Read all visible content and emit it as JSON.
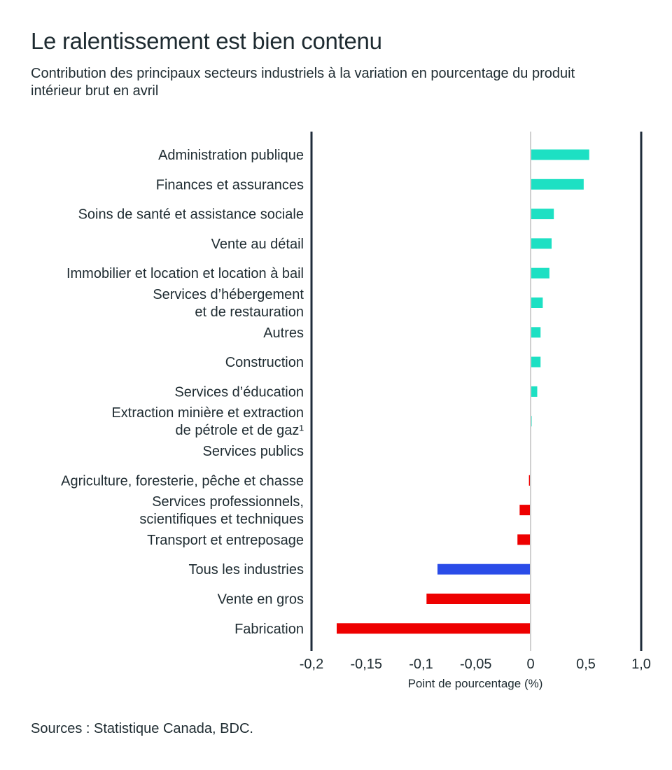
{
  "header": {
    "title": "Le ralentissement est bien contenu",
    "subtitle": "Contribution des principaux secteurs industriels à la variation en pourcentage du produit intérieur brut en avril"
  },
  "footer": {
    "source": "Sources : Statistique Canada, BDC."
  },
  "colors": {
    "positive": "#1de0c3",
    "negative": "#ee0000",
    "total": "#2a4ce8",
    "axis": "#1e2b3a",
    "zero_line": "#d0d0d0",
    "text": "#1e2b31"
  },
  "chart_data": {
    "type": "bar",
    "orientation": "horizontal",
    "title": "Le ralentissement est bien contenu",
    "subtitle": "Contribution des principaux secteurs industriels à la variation en pourcentage du produit intérieur brut en avril",
    "xlabel": "Point de pourcentage (%)",
    "ylabel": "",
    "xlim": [
      -0.2,
      1.0
    ],
    "scale_note": "broken scale: negative side -0.2 to 0 expanded, positive side 0 to 1.0 compressed",
    "xticks": [
      {
        "value": -0.2,
        "label": "-0,2"
      },
      {
        "value": -0.15,
        "label": "-0,15"
      },
      {
        "value": -0.1,
        "label": "-0,1"
      },
      {
        "value": -0.05,
        "label": "-0,05"
      },
      {
        "value": 0,
        "label": "0"
      },
      {
        "value": 0.5,
        "label": "0,5"
      },
      {
        "value": 1.0,
        "label": "1,0"
      }
    ],
    "grid": false,
    "legend": "none",
    "categories": [
      {
        "label": [
          "Administration publique"
        ],
        "value": 0.53,
        "kind": "positive"
      },
      {
        "label": [
          "Finances et assurances"
        ],
        "value": 0.48,
        "kind": "positive"
      },
      {
        "label": [
          "Soins de santé et assistance sociale"
        ],
        "value": 0.21,
        "kind": "positive"
      },
      {
        "label": [
          "Vente au détail"
        ],
        "value": 0.19,
        "kind": "positive"
      },
      {
        "label": [
          "Immobilier et location et location à bail"
        ],
        "value": 0.17,
        "kind": "positive"
      },
      {
        "label": [
          "Services d’hébergement",
          "et de restauration"
        ],
        "value": 0.11,
        "kind": "positive"
      },
      {
        "label": [
          "Autres"
        ],
        "value": 0.09,
        "kind": "positive"
      },
      {
        "label": [
          "Construction"
        ],
        "value": 0.09,
        "kind": "positive"
      },
      {
        "label": [
          "Services d’éducation"
        ],
        "value": 0.06,
        "kind": "positive"
      },
      {
        "label": [
          "Extraction minière et extraction",
          "de pétrole et de gaz¹"
        ],
        "value": 0.01,
        "kind": "positive"
      },
      {
        "label": [
          "Services publics"
        ],
        "value": -0.0005,
        "kind": "negative"
      },
      {
        "label": [
          "Agriculture, foresterie, pêche et chasse"
        ],
        "value": -0.0015,
        "kind": "negative"
      },
      {
        "label": [
          "Services professionnels,",
          "scientifiques et techniques"
        ],
        "value": -0.01,
        "kind": "negative"
      },
      {
        "label": [
          "Transport et entreposage"
        ],
        "value": -0.012,
        "kind": "negative"
      },
      {
        "label": [
          "Tous les industries"
        ],
        "value": -0.085,
        "kind": "total"
      },
      {
        "label": [
          "Vente en gros"
        ],
        "value": -0.095,
        "kind": "negative"
      },
      {
        "label": [
          "Fabrication"
        ],
        "value": -0.177,
        "kind": "negative"
      }
    ]
  }
}
